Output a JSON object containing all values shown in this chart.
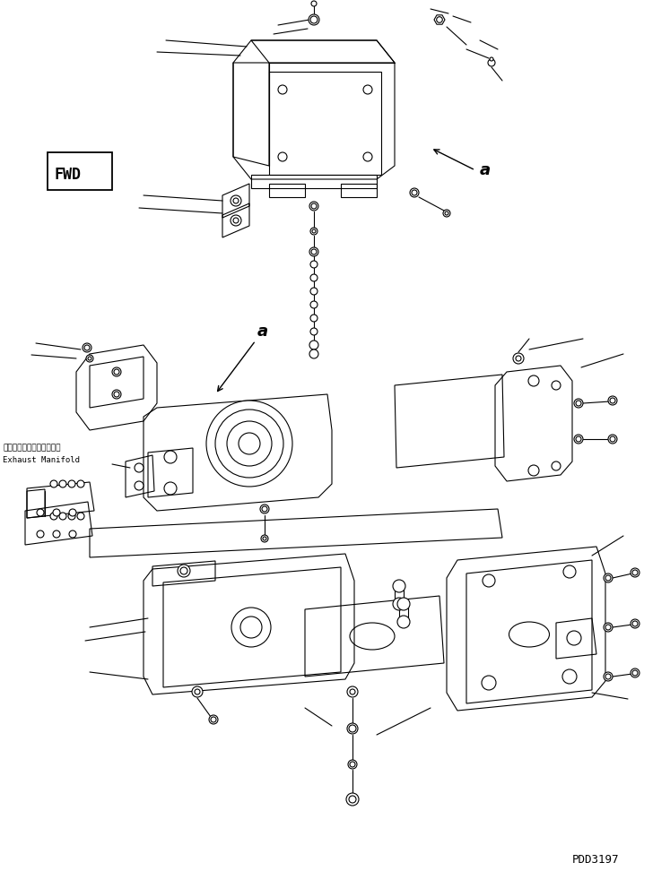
{
  "bg_color": "#ffffff",
  "line_color": "#000000",
  "part_code": "PDD3197",
  "fwd_label": "FWD",
  "label_a": "a",
  "exhaust_manifold_jp": "エキゾーストマニホールド",
  "exhaust_manifold_en": "Exhaust Manifold",
  "fig_width": 7.47,
  "fig_height": 9.72
}
